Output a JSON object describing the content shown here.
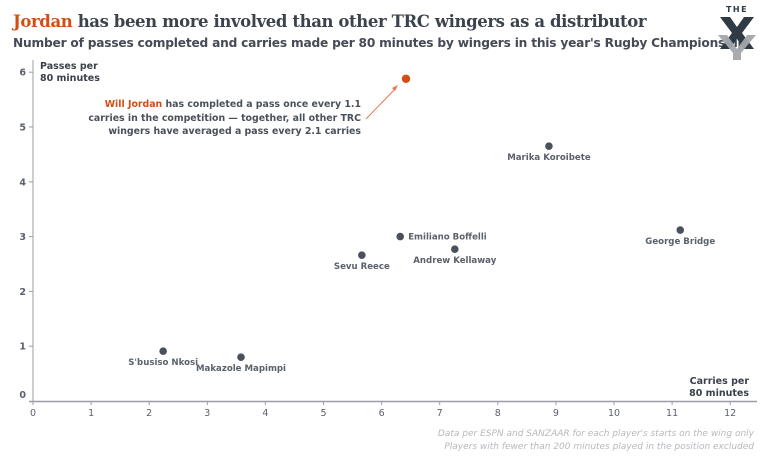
{
  "header": {
    "title_highlight": "Jordan",
    "title_rest": " has been more involved than other TRC wingers as a distributor",
    "subtitle": "Number of passes completed and carries made per 80 minutes by wingers in this year's Rugby Championship",
    "logo_text": "THE"
  },
  "colors": {
    "highlight": "#d24e14",
    "point": "#4b515c",
    "axis": "#9a9ea5"
  },
  "annotation": {
    "highlight": "Will Jordan",
    "line1_rest": " has completed a pass once every 1.1",
    "line2": "carries in the competition — together, all other TRC",
    "line3": "wingers have averaged a pass every 2.1 carries"
  },
  "source": {
    "line1": "Data per ESPN and SANZAAR for each player's starts on the wing only",
    "line2": "Players with fewer than 200 minutes played in the position excluded"
  },
  "chart_data": {
    "type": "scatter",
    "title": "Jordan has been more involved than other TRC wingers as a distributor",
    "subtitle": "Number of passes completed and carries made per 80 minutes by wingers in this year's Rugby Championship",
    "xlabel_lines": [
      "Carries per",
      "80 minutes"
    ],
    "ylabel_lines": [
      "Passes per",
      "80 minutes"
    ],
    "xlim": [
      0,
      12.4
    ],
    "ylim": [
      -0.1,
      6.2
    ],
    "xticks": [
      "0",
      "1",
      "2",
      "3",
      "4",
      "5",
      "6",
      "7",
      "8",
      "9",
      "10",
      "11",
      "12"
    ],
    "yticks": [
      "0",
      "1",
      "2",
      "3",
      "4",
      "5",
      "6"
    ],
    "grid": false,
    "points": [
      {
        "name": "Will Jordan",
        "x": 6.42,
        "y": 5.88,
        "highlight": true,
        "label": ""
      },
      {
        "name": "Marika Koroibete",
        "x": 8.88,
        "y": 4.65,
        "label": "Marika Koroibete",
        "label_pos": "below"
      },
      {
        "name": "George Bridge",
        "x": 11.14,
        "y": 3.12,
        "label": "George Bridge",
        "label_pos": "below"
      },
      {
        "name": "Emiliano Boffelli",
        "x": 6.32,
        "y": 3.0,
        "label": "Emiliano Boffelli",
        "label_pos": "right"
      },
      {
        "name": "Andrew Kellaway",
        "x": 7.26,
        "y": 2.77,
        "label": "Andrew Kellaway",
        "label_pos": "below"
      },
      {
        "name": "Sevu Reece",
        "x": 5.66,
        "y": 2.66,
        "label": "Sevu Reece",
        "label_pos": "below"
      },
      {
        "name": "S'busiso Nkosi",
        "x": 2.24,
        "y": 0.91,
        "label": "S'busiso Nkosi",
        "label_pos": "below"
      },
      {
        "name": "Makazole Mapimpi",
        "x": 3.58,
        "y": 0.8,
        "label": "Makazole Mapimpi",
        "label_pos": "below"
      }
    ]
  }
}
